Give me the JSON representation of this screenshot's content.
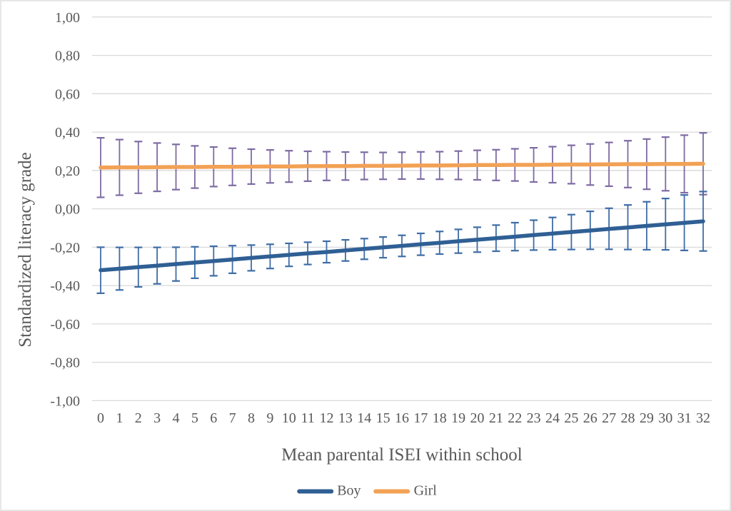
{
  "chart_data": {
    "type": "line",
    "title": "",
    "xlabel": "Mean parental ISEI within school",
    "ylabel": "Standardized literacy grade",
    "x": [
      0,
      1,
      2,
      3,
      4,
      5,
      6,
      7,
      8,
      9,
      10,
      11,
      12,
      13,
      14,
      15,
      16,
      17,
      18,
      19,
      20,
      21,
      22,
      23,
      24,
      25,
      26,
      27,
      28,
      29,
      30,
      31,
      32
    ],
    "ylim": [
      -1.0,
      1.0
    ],
    "ytick_values": [
      1.0,
      0.8,
      0.6,
      0.4,
      0.2,
      0.0,
      -0.2,
      -0.4,
      -0.6,
      -0.8,
      -1.0
    ],
    "ytick_labels": [
      "1,00",
      "0,80",
      "0,60",
      "0,40",
      "0,20",
      "0,00",
      "-0,20",
      "-0,40",
      "-0,60",
      "-0,80",
      "-1,00"
    ],
    "decimal_separator": ",",
    "grid": "horizontal",
    "legend_position": "bottom-center",
    "error_bars": true,
    "series": [
      {
        "name": "Boy",
        "color": "#2F5F94",
        "error_color": "#3E6DA5",
        "values": [
          -0.32,
          -0.312,
          -0.304,
          -0.296,
          -0.288,
          -0.28,
          -0.272,
          -0.264,
          -0.256,
          -0.248,
          -0.24,
          -0.232,
          -0.225,
          -0.217,
          -0.209,
          -0.201,
          -0.193,
          -0.185,
          -0.177,
          -0.169,
          -0.161,
          -0.153,
          -0.145,
          -0.137,
          -0.129,
          -0.121,
          -0.113,
          -0.105,
          -0.097,
          -0.089,
          -0.081,
          -0.073,
          -0.065
        ],
        "error_low": [
          -0.44,
          -0.423,
          -0.407,
          -0.391,
          -0.376,
          -0.362,
          -0.349,
          -0.336,
          -0.323,
          -0.311,
          -0.3,
          -0.29,
          -0.281,
          -0.272,
          -0.263,
          -0.255,
          -0.248,
          -0.242,
          -0.236,
          -0.231,
          -0.226,
          -0.221,
          -0.218,
          -0.215,
          -0.213,
          -0.212,
          -0.211,
          -0.211,
          -0.212,
          -0.213,
          -0.214,
          -0.217,
          -0.22
        ],
        "error_high": [
          -0.2,
          -0.201,
          -0.201,
          -0.201,
          -0.2,
          -0.198,
          -0.195,
          -0.192,
          -0.189,
          -0.185,
          -0.18,
          -0.174,
          -0.169,
          -0.162,
          -0.155,
          -0.147,
          -0.138,
          -0.128,
          -0.118,
          -0.107,
          -0.096,
          -0.085,
          -0.072,
          -0.059,
          -0.045,
          -0.03,
          -0.013,
          0.003,
          0.02,
          0.037,
          0.054,
          0.072,
          0.09
        ]
      },
      {
        "name": "Girl",
        "color": "#F2A155",
        "error_color": "#7E6BA3",
        "values": [
          0.215,
          0.216,
          0.216,
          0.217,
          0.218,
          0.218,
          0.219,
          0.219,
          0.22,
          0.221,
          0.221,
          0.222,
          0.223,
          0.223,
          0.224,
          0.224,
          0.225,
          0.226,
          0.226,
          0.227,
          0.228,
          0.228,
          0.229,
          0.229,
          0.23,
          0.231,
          0.231,
          0.232,
          0.233,
          0.233,
          0.234,
          0.234,
          0.235
        ],
        "error_low": [
          0.06,
          0.071,
          0.081,
          0.091,
          0.1,
          0.108,
          0.116,
          0.122,
          0.129,
          0.135,
          0.139,
          0.144,
          0.148,
          0.15,
          0.153,
          0.154,
          0.155,
          0.155,
          0.154,
          0.153,
          0.151,
          0.148,
          0.145,
          0.14,
          0.136,
          0.131,
          0.124,
          0.118,
          0.111,
          0.102,
          0.094,
          0.084,
          0.074
        ],
        "error_high": [
          0.37,
          0.361,
          0.351,
          0.343,
          0.336,
          0.328,
          0.322,
          0.316,
          0.311,
          0.307,
          0.303,
          0.3,
          0.298,
          0.296,
          0.295,
          0.294,
          0.295,
          0.297,
          0.298,
          0.301,
          0.305,
          0.308,
          0.313,
          0.318,
          0.324,
          0.331,
          0.338,
          0.346,
          0.355,
          0.364,
          0.374,
          0.384,
          0.396
        ]
      }
    ]
  },
  "colors": {
    "text": "#595959",
    "gridline": "#D9D9D9",
    "background": "#FFFFFF",
    "frame": "#E7E7E7"
  }
}
